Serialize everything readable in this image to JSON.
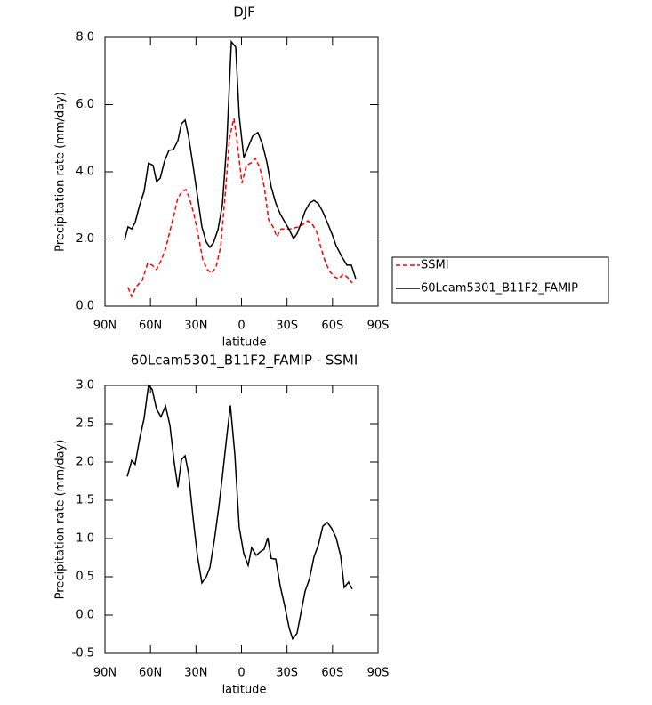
{
  "chart_data": [
    {
      "type": "line",
      "title": "DJF",
      "xlabel": "latitude",
      "ylabel": "Precipitation rate (mm/day)",
      "xlim": [
        90,
        -90
      ],
      "xticks": [
        {
          "value": 90,
          "label": "90N"
        },
        {
          "value": 60,
          "label": "60N"
        },
        {
          "value": 30,
          "label": "30N"
        },
        0,
        {
          "value": -30,
          "label": "30S"
        },
        {
          "value": -60,
          "label": "60S"
        },
        {
          "value": -90,
          "label": "90S"
        }
      ],
      "ylim": [
        0,
        8
      ],
      "yticks": [
        {
          "value": 0,
          "label": "0.0"
        },
        {
          "value": 2,
          "label": "2.0"
        },
        {
          "value": 4,
          "label": "4.0"
        },
        {
          "value": 6,
          "label": "6.0"
        },
        {
          "value": 8,
          "label": "8.0"
        }
      ],
      "legend": "outside right",
      "series": [
        {
          "name": "SSMI",
          "color": "#ff0000",
          "linestyle": "dashed",
          "x": [
            74.8,
            72.4,
            69.5,
            65.4,
            61.9,
            58.9,
            56.0,
            53.1,
            50.1,
            47.2,
            44.3,
            41.9,
            39.0,
            36.6,
            34.3,
            31.4,
            28.4,
            25.5,
            22.6,
            19.6,
            16.7,
            13.8,
            10.8,
            7.9,
            5.0,
            2.6,
            -0.3,
            -3.2,
            -6.2,
            -9.1,
            -12.0,
            -15.0,
            -17.9,
            -20.8,
            -23.2,
            -26.1,
            -29.0,
            -32.0,
            -34.9,
            -37.8,
            -40.7,
            -43.7,
            -46.6,
            -49.5,
            -52.5,
            -55.4,
            -58.3,
            -61.3,
            -64.2,
            -67.1,
            -70.1,
            -73.0
          ],
          "values": [
            0.56,
            0.29,
            0.58,
            0.77,
            1.27,
            1.22,
            1.09,
            1.35,
            1.7,
            2.23,
            2.75,
            3.23,
            3.42,
            3.47,
            3.21,
            2.75,
            2.09,
            1.38,
            1.09,
            0.98,
            1.17,
            1.75,
            3.28,
            5.01,
            5.59,
            4.79,
            3.66,
            4.19,
            4.26,
            4.4,
            4.13,
            3.55,
            2.57,
            2.36,
            2.07,
            2.3,
            2.3,
            2.3,
            2.33,
            2.36,
            2.44,
            2.54,
            2.44,
            2.23,
            1.72,
            1.3,
            1.03,
            0.87,
            0.82,
            0.95,
            0.85,
            0.69
          ]
        },
        {
          "name": "60Lcam5301_B11F2_FAMIP",
          "color": "#000000",
          "linestyle": "solid",
          "x": [
            77.1,
            74.8,
            72.4,
            70.1,
            67.1,
            64.2,
            61.3,
            58.3,
            56.0,
            53.6,
            50.7,
            47.8,
            44.9,
            41.9,
            39.6,
            37.2,
            34.9,
            32.0,
            29.0,
            26.1,
            23.2,
            20.8,
            18.5,
            15.5,
            12.6,
            9.7,
            6.7,
            3.8,
            1.5,
            -1.5,
            -4.4,
            -7.3,
            -10.8,
            -13.8,
            -16.7,
            -19.6,
            -22.6,
            -25.5,
            -28.4,
            -31.4,
            -34.3,
            -36.6,
            -39.0,
            -41.9,
            -44.9,
            -47.8,
            -50.7,
            -53.6,
            -56.6,
            -59.5,
            -62.4,
            -66.0,
            -69.5,
            -72.4,
            -75.3
          ],
          "values": [
            1.96,
            2.36,
            2.3,
            2.49,
            3.02,
            3.42,
            4.26,
            4.19,
            3.71,
            3.81,
            4.32,
            4.64,
            4.66,
            4.93,
            5.43,
            5.54,
            5.06,
            4.21,
            3.28,
            2.36,
            1.91,
            1.75,
            1.88,
            2.28,
            3.02,
            4.87,
            7.87,
            7.71,
            5.67,
            4.42,
            4.74,
            5.06,
            5.17,
            4.82,
            4.29,
            3.55,
            3.07,
            2.75,
            2.52,
            2.28,
            2.01,
            2.15,
            2.44,
            2.83,
            3.07,
            3.15,
            3.05,
            2.81,
            2.49,
            2.17,
            1.8,
            1.48,
            1.22,
            1.22,
            0.82
          ]
        }
      ]
    },
    {
      "type": "line",
      "title": "60Lcam5301_B11F2_FAMIP - SSMI",
      "xlabel": "latitude",
      "ylabel": "Precipitation rate (mm/day)",
      "xlim": [
        90,
        -90
      ],
      "xticks": [
        {
          "value": 90,
          "label": "90N"
        },
        {
          "value": 60,
          "label": "60N"
        },
        {
          "value": 30,
          "label": "30N"
        },
        0,
        {
          "value": -30,
          "label": "30S"
        },
        {
          "value": -60,
          "label": "60S"
        },
        {
          "value": -90,
          "label": "90S"
        }
      ],
      "ylim": [
        -0.5,
        3
      ],
      "yticks": [
        -0.5,
        {
          "value": 0,
          "label": "0.0"
        },
        0.5,
        {
          "value": 1,
          "label": "1.0"
        },
        1.5,
        {
          "value": 2,
          "label": "2.0"
        },
        2.5,
        {
          "value": 3,
          "label": "3.0"
        }
      ],
      "series": [
        {
          "color": "#000000",
          "linestyle": "solid",
          "x": [
            75.3,
            72.4,
            70.1,
            67.1,
            64.2,
            61.3,
            58.9,
            56.0,
            53.1,
            50.1,
            47.2,
            44.3,
            41.9,
            39.6,
            37.2,
            34.9,
            32.0,
            29.0,
            26.1,
            23.2,
            20.8,
            17.9,
            14.9,
            12.6,
            9.7,
            7.3,
            4.4,
            1.5,
            -1.5,
            -4.4,
            -6.7,
            -9.7,
            -12.6,
            -14.9,
            -17.3,
            -19.6,
            -22.6,
            -25.5,
            -28.4,
            -31.4,
            -33.7,
            -36.6,
            -39.0,
            -41.9,
            -44.9,
            -47.8,
            -50.7,
            -53.6,
            -56.6,
            -59.5,
            -62.4,
            -65.4,
            -67.7,
            -70.6,
            -73.0
          ],
          "values": [
            1.81,
            2.02,
            1.97,
            2.31,
            2.57,
            3.0,
            2.95,
            2.69,
            2.59,
            2.73,
            2.48,
            1.99,
            1.67,
            2.03,
            2.08,
            1.85,
            1.29,
            0.77,
            0.42,
            0.5,
            0.62,
            0.98,
            1.42,
            1.81,
            2.34,
            2.74,
            2.1,
            1.15,
            0.8,
            0.65,
            0.88,
            0.78,
            0.83,
            0.86,
            1.01,
            0.74,
            0.73,
            0.38,
            0.13,
            -0.17,
            -0.31,
            -0.24,
            0.01,
            0.31,
            0.48,
            0.76,
            0.92,
            1.16,
            1.21,
            1.13,
            1.01,
            0.77,
            0.36,
            0.43,
            0.34
          ]
        }
      ]
    }
  ]
}
